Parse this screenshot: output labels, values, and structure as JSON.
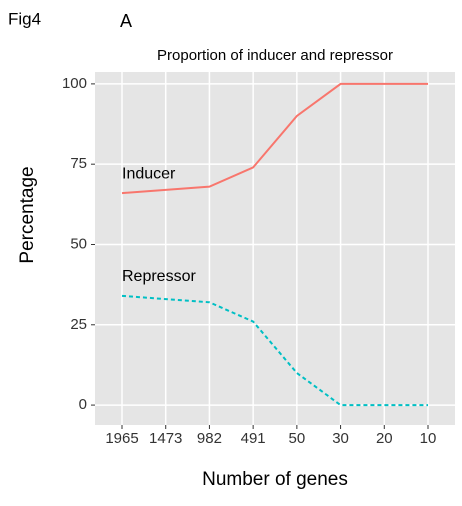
{
  "figure_label": "Fig4",
  "panel_label": "A",
  "chart_data": {
    "type": "line",
    "title": "Proportion of inducer and repressor",
    "x_label": "Number of genes",
    "y_label": "Percentage",
    "categories": [
      "1965",
      "1473",
      "982",
      "491",
      "50",
      "30",
      "20",
      "10"
    ],
    "series": [
      {
        "name": "Inducer",
        "color": "#F8766D",
        "linestyle": "solid",
        "values": [
          66,
          67,
          68,
          74,
          90,
          100,
          100,
          100
        ]
      },
      {
        "name": "Repressor",
        "color": "#00BFC4",
        "linestyle": "dashed",
        "values": [
          34,
          33,
          32,
          26,
          10,
          0,
          0,
          0
        ]
      }
    ],
    "ylim": [
      -6.2,
      103.7
    ],
    "yticks": [
      0,
      25,
      50,
      75,
      100
    ],
    "grid": true,
    "legend": "none"
  }
}
